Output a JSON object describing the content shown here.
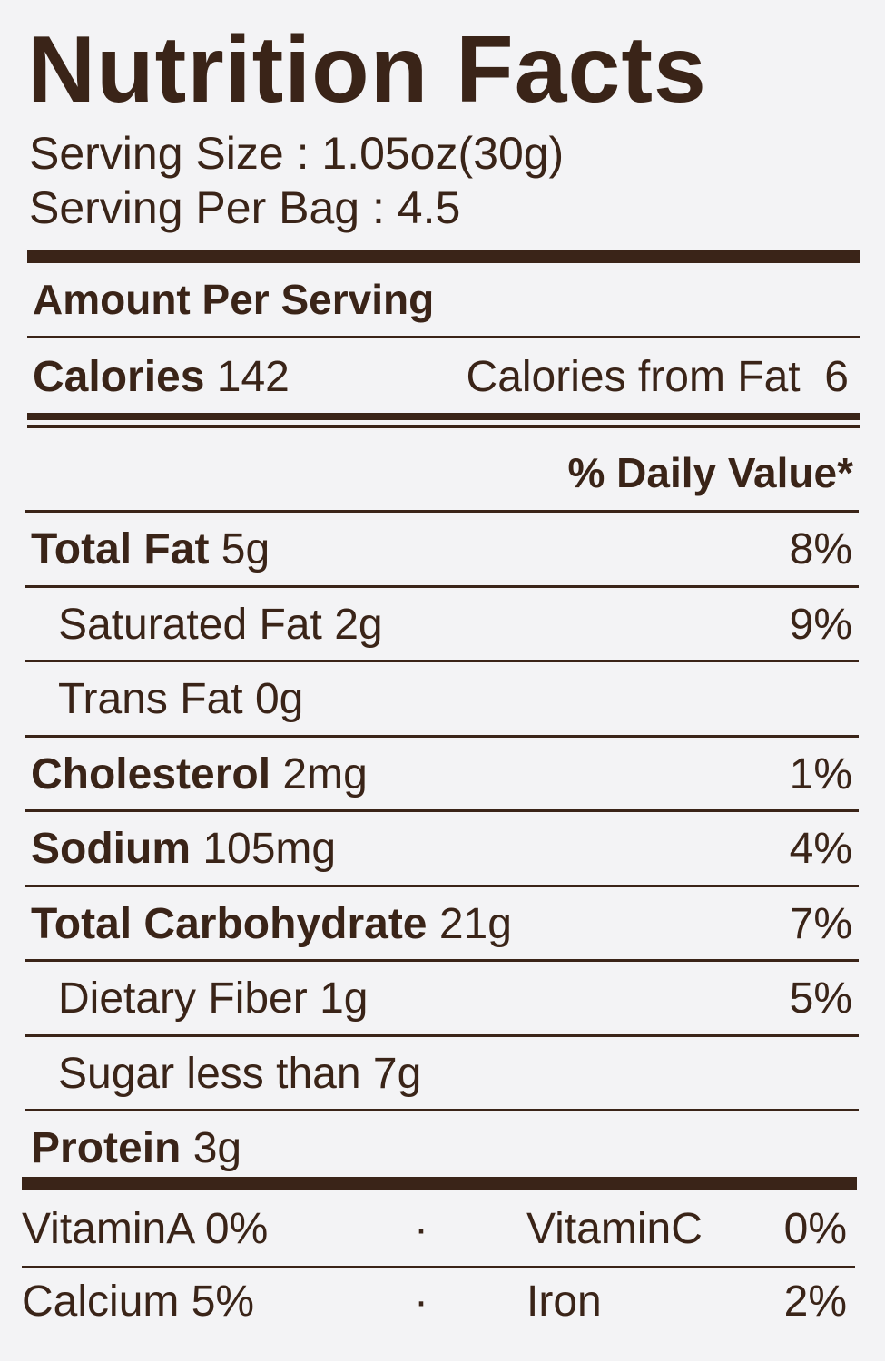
{
  "title": "Nutrition Facts",
  "serving_size": "Serving Size : 1.05oz(30g)",
  "servings_per_bag": "Serving Per Bag : 4.5",
  "amount_per_serving": "Amount Per Serving",
  "calories": {
    "label": "Calories",
    "value": "142"
  },
  "calories_from_fat": {
    "label": "Calories from Fat",
    "value": "6"
  },
  "daily_value_header": "% Daily Value*",
  "nutrients": [
    {
      "name": "Total Fat",
      "amount": "5g",
      "dv": "8%",
      "bold": true
    },
    {
      "name": "Saturated Fat",
      "amount": "2g",
      "dv": "9%",
      "bold": false
    },
    {
      "name": "Trans Fat",
      "amount": "0g",
      "bold": false
    },
    {
      "name": "Cholesterol",
      "amount": "2mg",
      "dv": "1%",
      "bold": true
    },
    {
      "name": "Sodium",
      "amount": "105mg",
      "dv": "4%",
      "bold": true
    },
    {
      "name": "Total Carbohydrate",
      "amount": "21g",
      "dv": "7%",
      "bold": true
    },
    {
      "name": "Dietary Fiber",
      "amount": "1g",
      "dv": "5%",
      "bold": false
    },
    {
      "name": "Sugar less than",
      "amount": "7g",
      "bold": false
    },
    {
      "name": "Protein",
      "amount": "3g",
      "bold": true
    }
  ],
  "vitamins": [
    [
      {
        "name": "VitaminA",
        "value": "0%"
      },
      {
        "name": "VitaminC",
        "value": "0%"
      }
    ],
    [
      {
        "name": "Calcium",
        "value": "5%"
      },
      {
        "name": "Iron",
        "value": "2%"
      }
    ]
  ]
}
